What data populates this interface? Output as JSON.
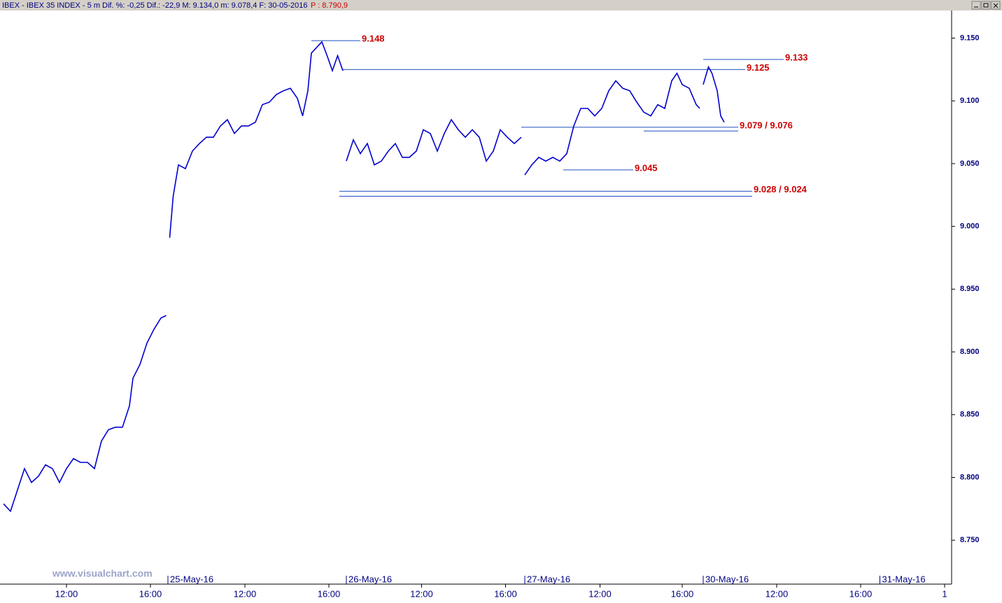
{
  "header": {
    "title": "IBEX - IBEX 35 INDEX - 5 m  Dif. %: -0,25  Dif.: -22,9  M: 9.134,0  m: 9.078,4  F: 30-05-2016",
    "last_price": "P : 8.790,9"
  },
  "watermark": "www.visualchart.com",
  "chart_data": {
    "type": "line",
    "xlim": [
      0,
      544
    ],
    "ylim": [
      8.715,
      9.172
    ],
    "yticks": [
      {
        "value": 8.75,
        "label": "8.750"
      },
      {
        "value": 8.8,
        "label": "8.800"
      },
      {
        "value": 8.85,
        "label": "8.850"
      },
      {
        "value": 8.9,
        "label": "8.900"
      },
      {
        "value": 8.95,
        "label": "8.950"
      },
      {
        "value": 9.0,
        "label": "9.000"
      },
      {
        "value": 9.05,
        "label": "9.050"
      },
      {
        "value": 9.1,
        "label": "9.100"
      },
      {
        "value": 9.15,
        "label": "9.150"
      }
    ],
    "xticks": [
      {
        "value": 38,
        "label": "12:00"
      },
      {
        "value": 86,
        "label": "16:00"
      },
      {
        "value": 96,
        "label": "25-May-16"
      },
      {
        "value": 140,
        "label": "12:00"
      },
      {
        "value": 188,
        "label": "16:00"
      },
      {
        "value": 198,
        "label": "26-May-16"
      },
      {
        "value": 241,
        "label": "12:00"
      },
      {
        "value": 289,
        "label": "16:00"
      },
      {
        "value": 300,
        "label": "27-May-16"
      },
      {
        "value": 343,
        "label": "12:00"
      },
      {
        "value": 390,
        "label": "16:00"
      },
      {
        "value": 402,
        "label": "30-May-16"
      },
      {
        "value": 444,
        "label": "12:00"
      },
      {
        "value": 492,
        "label": "16:00"
      },
      {
        "value": 503,
        "label": "31-May-16"
      },
      {
        "value": 540,
        "label": "1"
      }
    ],
    "series": [
      {
        "color": "#0000cc",
        "x": [
          2,
          6,
          10,
          14,
          18,
          22,
          26,
          30,
          34,
          38,
          42,
          46,
          50,
          54,
          58,
          62,
          66,
          70,
          74,
          76,
          80,
          84,
          88,
          92,
          95,
          96,
          97,
          99,
          102,
          106,
          110,
          114,
          118,
          122,
          126,
          130,
          134,
          138,
          142,
          146,
          150,
          154,
          158,
          162,
          166,
          170,
          173,
          176,
          178,
          182,
          184,
          187,
          190,
          193,
          196,
          197,
          198,
          202,
          206,
          210,
          214,
          218,
          222,
          226,
          230,
          234,
          238,
          242,
          246,
          250,
          254,
          258,
          262,
          266,
          270,
          274,
          278,
          282,
          286,
          290,
          294,
          298,
          299,
          300,
          304,
          308,
          312,
          316,
          320,
          324,
          328,
          332,
          336,
          340,
          344,
          348,
          352,
          356,
          360,
          364,
          368,
          372,
          376,
          380,
          384,
          387,
          390,
          394,
          398,
          400,
          401,
          402,
          405,
          407,
          410,
          412,
          414
        ],
        "values": [
          8.779,
          8.773,
          8.79,
          8.807,
          8.796,
          8.801,
          8.81,
          8.807,
          8.796,
          8.807,
          8.815,
          8.812,
          8.812,
          8.807,
          8.829,
          8.838,
          8.84,
          8.84,
          8.857,
          8.879,
          8.89,
          8.907,
          8.918,
          8.927,
          8.929,
          null,
          8.991,
          9.024,
          9.049,
          9.046,
          9.06,
          9.066,
          9.071,
          9.071,
          9.08,
          9.085,
          9.074,
          9.08,
          9.08,
          9.083,
          9.097,
          9.099,
          9.105,
          9.108,
          9.11,
          9.102,
          9.088,
          9.108,
          9.138,
          9.144,
          9.147,
          9.136,
          9.124,
          9.136,
          9.124,
          null,
          9.052,
          9.069,
          9.058,
          9.066,
          9.049,
          9.052,
          9.06,
          9.066,
          9.055,
          9.055,
          9.06,
          9.077,
          9.074,
          9.06,
          9.074,
          9.085,
          9.077,
          9.071,
          9.077,
          9.071,
          9.052,
          9.06,
          9.077,
          9.071,
          9.066,
          9.071,
          null,
          9.041,
          9.049,
          9.055,
          9.052,
          9.055,
          9.052,
          9.058,
          9.08,
          9.094,
          9.094,
          9.088,
          9.094,
          9.108,
          9.116,
          9.11,
          9.108,
          9.099,
          9.091,
          9.088,
          9.097,
          9.094,
          9.116,
          9.122,
          9.113,
          9.11,
          9.097,
          9.094,
          null,
          9.113,
          9.127,
          9.122,
          9.108,
          9.088,
          9.083
        ]
      }
    ],
    "annotations": [
      {
        "label": "9.148",
        "lines": [
          {
            "level": 9.148,
            "from": 178,
            "to": 206
          }
        ]
      },
      {
        "label": "9.133",
        "lines": [
          {
            "level": 9.133,
            "from": 402,
            "to": 448
          }
        ]
      },
      {
        "label": "9.125",
        "lines": [
          {
            "level": 9.125,
            "from": 196,
            "to": 426
          }
        ]
      },
      {
        "label": "9.079 / 9.076",
        "lines": [
          {
            "level": 9.079,
            "from": 298,
            "to": 422
          },
          {
            "level": 9.076,
            "from": 368,
            "to": 422
          }
        ]
      },
      {
        "label": "9.045",
        "lines": [
          {
            "level": 9.045,
            "from": 322,
            "to": 362
          }
        ]
      },
      {
        "label": "9.028 / 9.024",
        "lines": [
          {
            "level": 9.028,
            "from": 194,
            "to": 430
          },
          {
            "level": 9.024,
            "from": 194,
            "to": 430
          }
        ]
      }
    ]
  }
}
